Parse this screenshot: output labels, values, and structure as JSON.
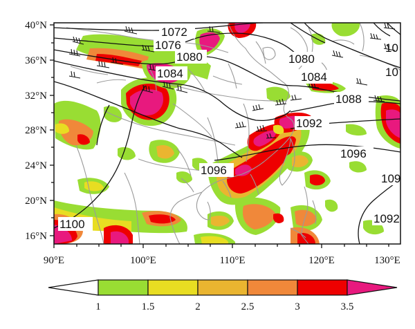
{
  "map": {
    "lat_labels": [
      "40°N",
      "36°N",
      "32°N",
      "28°N",
      "24°N",
      "20°N",
      "16°N"
    ],
    "lon_labels": [
      "90°E",
      "100°E",
      "110°E",
      "120°E",
      "130°E"
    ],
    "contour_labels": {
      "c1072": "1072",
      "c1076": "1076",
      "c1080a": "1080",
      "c1080b": "1080",
      "c1084a": "1084",
      "c1084b": "1084",
      "c1088": "1088",
      "c1092a": "1092",
      "c1092b": "109",
      "c1092c": "1092",
      "c1096a": "1096",
      "c1096b": "1096",
      "c1100": "1100",
      "edge1": "10",
      "edge2": "10"
    }
  },
  "colorbar": {
    "labels": [
      "1",
      "1.5",
      "2",
      "2.5",
      "3",
      "3.5"
    ],
    "colors": [
      "#99dd33",
      "#e8dd22",
      "#eab530",
      "#f0883a",
      "#ee0000",
      "#e8197e"
    ]
  },
  "shading_colors": {
    "level1": "#99dd33",
    "level2": "#e8dd22",
    "level3": "#eab530",
    "level4": "#f0883a",
    "level5": "#ee0000",
    "level6": "#e8197e"
  }
}
